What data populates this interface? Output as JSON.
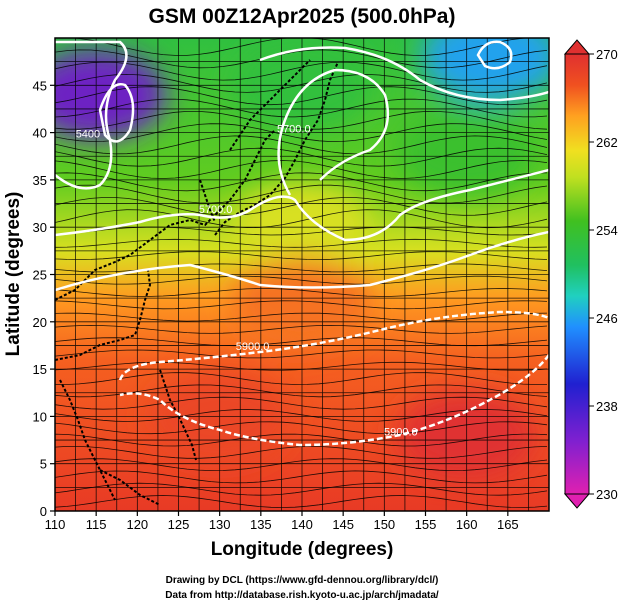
{
  "chart_data": {
    "type": "heatmap",
    "title": "GSM 00Z12Apr2025 (500.0hPa)",
    "xlabel": "Longitude (degrees)",
    "ylabel": "Latitude  (degrees)",
    "xlim": [
      110,
      170
    ],
    "ylim": [
      0,
      50
    ],
    "xticks": [
      110,
      115,
      120,
      125,
      130,
      135,
      140,
      145,
      150,
      155,
      160,
      165
    ],
    "yticks": [
      0,
      5,
      10,
      15,
      20,
      25,
      30,
      35,
      40,
      45
    ],
    "grid": true,
    "colorbar": {
      "min": 230,
      "max": 270,
      "ticks": [
        230,
        238,
        246,
        254,
        262,
        270
      ],
      "colors": [
        "#e020b0",
        "#2020d0",
        "#2090ff",
        "#20d0c0",
        "#30c030",
        "#80d020",
        "#e0e020",
        "#ffa020",
        "#f05020",
        "#e03030"
      ],
      "placement": "right"
    },
    "contours": [
      {
        "label": "5400",
        "lon": 114,
        "lat": 39.5
      },
      {
        "label": "5700.0",
        "lon": 129.5,
        "lat": 31.5
      },
      {
        "label": "5700.0",
        "lon": 139,
        "lat": 40
      },
      {
        "label": "5900.0",
        "lon": 134,
        "lat": 17
      },
      {
        "label": "5900.0",
        "lon": 152,
        "lat": 8
      }
    ],
    "field_regions": [
      {
        "lon": 115,
        "lat": 44,
        "value": 236
      },
      {
        "lon": 163,
        "lat": 48,
        "value": 246
      },
      {
        "lon": 140,
        "lat": 45,
        "value": 253
      },
      {
        "lon": 160,
        "lat": 38,
        "value": 254
      },
      {
        "lon": 140,
        "lat": 30,
        "value": 260
      },
      {
        "lon": 140,
        "lat": 22,
        "value": 266
      },
      {
        "lon": 130,
        "lat": 10,
        "value": 268
      },
      {
        "lon": 160,
        "lat": 8,
        "value": 270
      }
    ]
  },
  "credits": {
    "line1": "Drawing by DCL (https://www.gfd-dennou.org/library/dcl/)",
    "line2": "Data from http://database.rish.kyoto-u.ac.jp/arch/jmadata/"
  }
}
